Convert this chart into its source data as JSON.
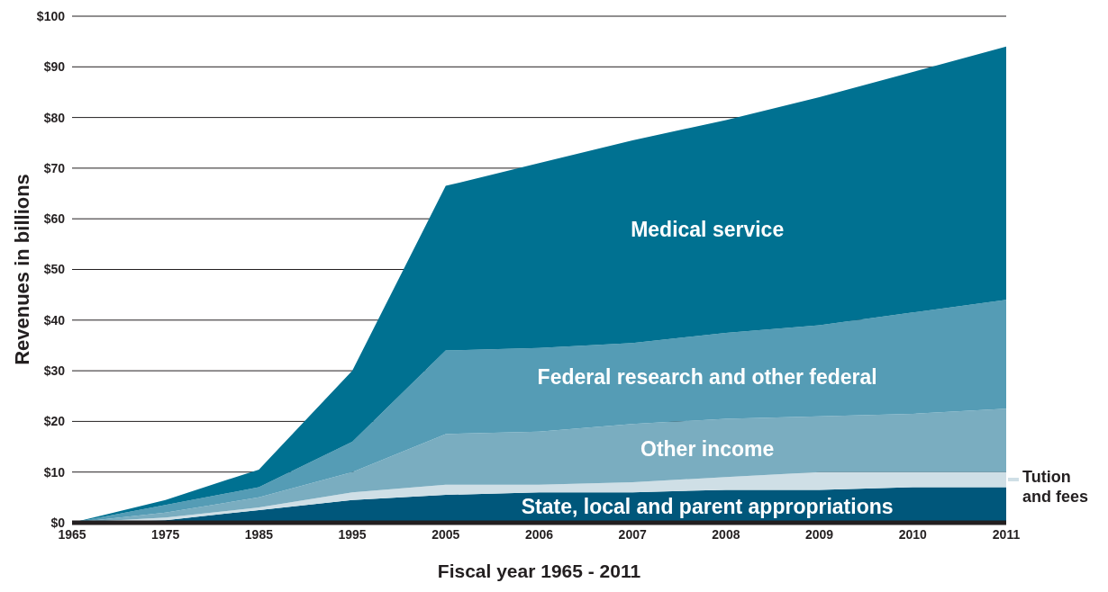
{
  "chart_data": {
    "type": "area",
    "stacked": true,
    "xlabel": "Fiscal year 1965 - 2011",
    "ylabel": "Revenues in billions",
    "categories": [
      "1965",
      "1975",
      "1985",
      "1995",
      "2005",
      "2006",
      "2007",
      "2008",
      "2009",
      "2010",
      "2011"
    ],
    "series": [
      {
        "name": "State, local and parent appropriations",
        "color": "#00577b",
        "values": [
          0,
          0.5,
          2.5,
          4.5,
          5.5,
          6,
          6,
          6.5,
          6.5,
          7,
          7
        ]
      },
      {
        "name": "Tution and fees",
        "color": "#cfdfe6",
        "values": [
          0,
          0.5,
          0.5,
          1.5,
          2,
          1.5,
          2,
          2.5,
          3.5,
          3,
          3
        ]
      },
      {
        "name": "Other income",
        "color": "#7aadc0",
        "values": [
          0,
          1,
          2,
          4,
          10,
          10.5,
          11.5,
          11.5,
          11,
          11.5,
          12.5
        ]
      },
      {
        "name": "Federal research and other federal",
        "color": "#559cb5",
        "values": [
          0,
          1.5,
          2,
          6,
          16.5,
          16.5,
          16,
          17,
          18,
          20,
          21.5
        ]
      },
      {
        "name": "Medical service",
        "color": "#007191",
        "values": [
          0,
          1,
          3.5,
          14,
          32.5,
          36.5,
          40,
          42,
          45,
          47.5,
          50
        ]
      }
    ],
    "ylim": [
      0,
      100
    ],
    "yticks": [
      {
        "value": 0,
        "label": "$0"
      },
      {
        "value": 10,
        "label": "$10"
      },
      {
        "value": 20,
        "label": "$20"
      },
      {
        "value": 30,
        "label": "$30"
      },
      {
        "value": 40,
        "label": "$40"
      },
      {
        "value": 50,
        "label": "$50"
      },
      {
        "value": 60,
        "label": "$60"
      },
      {
        "value": 70,
        "label": "$70"
      },
      {
        "value": 80,
        "label": "$80"
      },
      {
        "value": 90,
        "label": "$90"
      },
      {
        "value": 100,
        "label": "$100"
      }
    ],
    "grid": "y"
  }
}
